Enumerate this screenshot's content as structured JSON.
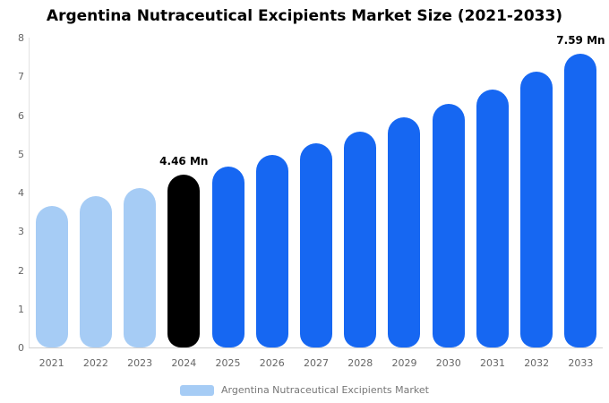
{
  "chart_data": {
    "type": "bar",
    "title": "Argentina Nutraceutical Excipients Market Size (2021-2033)",
    "unit": "Mn",
    "categories": [
      "2021",
      "2022",
      "2023",
      "2024",
      "2025",
      "2026",
      "2027",
      "2028",
      "2029",
      "2030",
      "2031",
      "2032",
      "2033"
    ],
    "values": [
      3.65,
      3.9,
      4.12,
      4.46,
      4.67,
      4.97,
      5.28,
      5.58,
      5.94,
      6.28,
      6.66,
      7.12,
      7.59
    ],
    "bar_colors": [
      "#a6ccf5",
      "#a6ccf5",
      "#a6ccf5",
      "#000000",
      "#1667f2",
      "#1667f2",
      "#1667f2",
      "#1667f2",
      "#1667f2",
      "#1667f2",
      "#1667f2",
      "#1667f2",
      "#1667f2"
    ],
    "annotations": [
      {
        "category": "2024",
        "text": "4.46 Mn"
      },
      {
        "category": "2033",
        "text": "7.59 Mn"
      }
    ],
    "ylim": [
      0,
      8
    ],
    "yticks": [
      0,
      1,
      2,
      3,
      4,
      5,
      6,
      7,
      8
    ],
    "grid": false,
    "legend": {
      "label": "Argentina Nutraceutical Excipients Market",
      "swatch_color": "#a6ccf5",
      "position": "bottom"
    },
    "colors": {
      "historical": "#a6ccf5",
      "base_year": "#000000",
      "forecast": "#1667f2",
      "background": "#ffffff"
    }
  }
}
